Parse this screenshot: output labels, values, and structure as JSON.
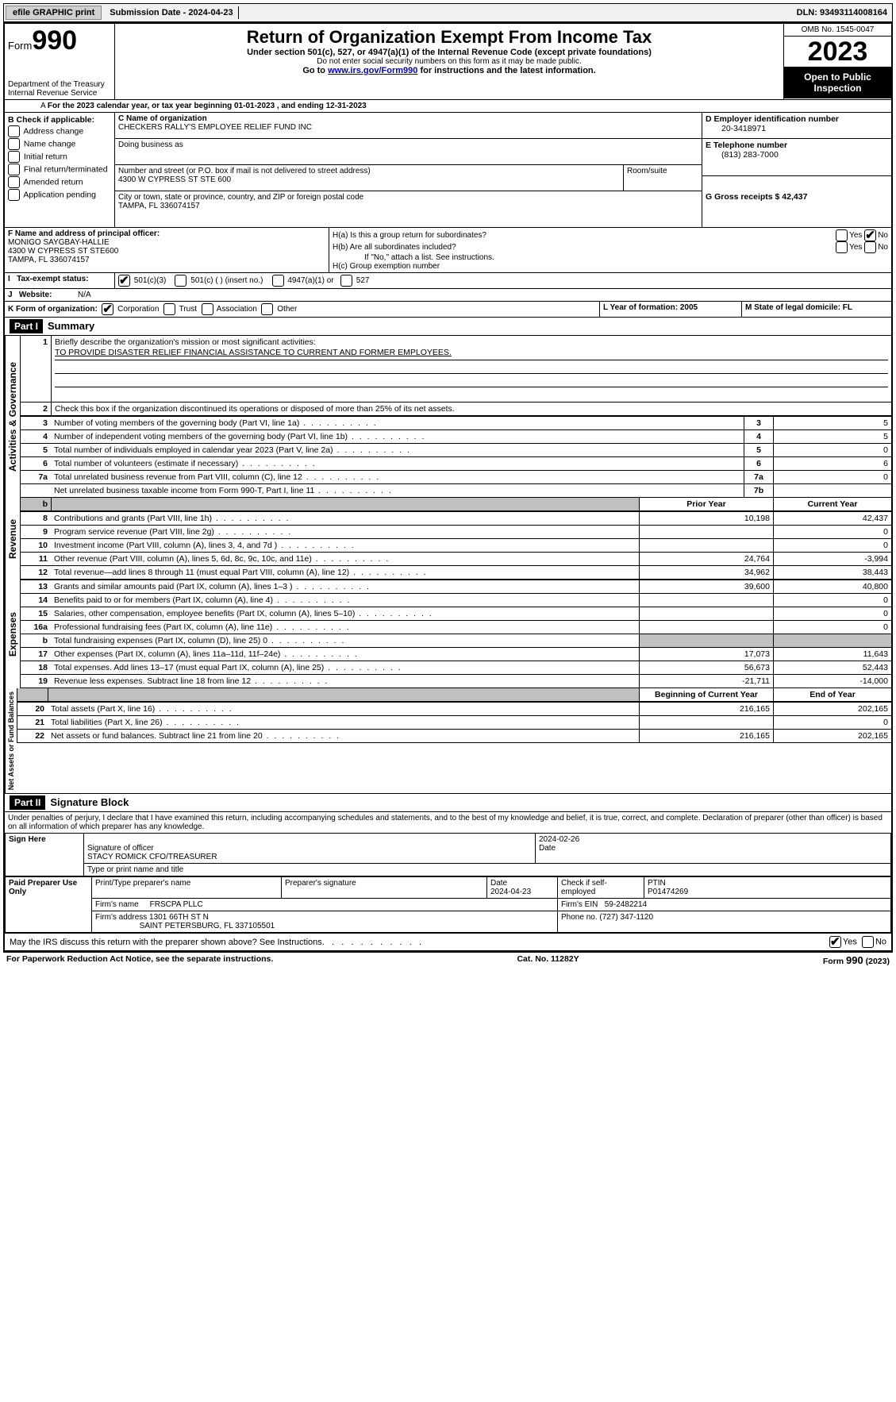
{
  "topbar": {
    "efile": "efile GRAPHIC print",
    "submission": "Submission Date - 2024-04-23",
    "dln": "DLN: 93493114008164"
  },
  "header": {
    "form_label": "Form",
    "form_no": "990",
    "dept": "Department of the Treasury Internal Revenue Service",
    "title": "Return of Organization Exempt From Income Tax",
    "line1": "Under section 501(c), 527, or 4947(a)(1) of the Internal Revenue Code (except private foundations)",
    "line2": "Do not enter social security numbers on this form as it may be made public.",
    "line3_pre": "Go to ",
    "line3_link": "www.irs.gov/Form990",
    "line3_post": " for instructions and the latest information.",
    "omb": "OMB No. 1545-0047",
    "year": "2023",
    "open": "Open to Public Inspection"
  },
  "sectionA": {
    "text": "For the 2023 calendar year, or tax year beginning 01-01-2023   , and ending 12-31-2023"
  },
  "boxB": {
    "label": "B Check if applicable:",
    "opts": [
      "Address change",
      "Name change",
      "Initial return",
      "Final return/terminated",
      "Amended return",
      "Application pending"
    ]
  },
  "boxC": {
    "name_label": "C Name of organization",
    "name": "CHECKERS RALLY'S EMPLOYEE RELIEF FUND INC",
    "dba_label": "Doing business as",
    "street_label": "Number and street (or P.O. box if mail is not delivered to street address)",
    "street": "4300 W CYPRESS ST STE 600",
    "room_label": "Room/suite",
    "city_label": "City or town, state or province, country, and ZIP or foreign postal code",
    "city": "TAMPA, FL  336074157"
  },
  "boxD": {
    "label": "D Employer identification number",
    "val": "20-3418971"
  },
  "boxE": {
    "label": "E Telephone number",
    "val": "(813) 283-7000"
  },
  "boxG": {
    "label": "G Gross receipts $ 42,437"
  },
  "boxF": {
    "label": "F  Name and address of principal officer:",
    "name": "MONIGO SAYGBAY-HALLIE",
    "addr1": "4300 W CYPRESS ST STE600",
    "addr2": "TAMPA, FL  336074157"
  },
  "boxH": {
    "a": "H(a)  Is this a group return for subordinates?",
    "b": "H(b)  Are all subordinates included?",
    "note": "If \"No,\" attach a list. See instructions.",
    "c": "H(c)  Group exemption number"
  },
  "taxExempt": {
    "label": "Tax-exempt status:",
    "o1": "501(c)(3)",
    "o2": "501(c) (  ) (insert no.)",
    "o3": "4947(a)(1) or",
    "o4": "527"
  },
  "website": {
    "label": "Website:",
    "val": "N/A"
  },
  "formOrg": {
    "label": "K Form of organization:",
    "o1": "Corporation",
    "o2": "Trust",
    "o3": "Association",
    "o4": "Other"
  },
  "yearFormation": "L Year of formation: 2005",
  "domicile": "M State of legal domicile: FL",
  "part1_label": "Part I",
  "part1_title": "Summary",
  "mission_label": "Briefly describe the organization's mission or most significant activities:",
  "mission_text": "TO PROVIDE DISASTER RELIEF FINANCIAL ASSISTANCE TO CURRENT AND FORMER EMPLOYEES.",
  "line2_text": "Check this box      if the organization discontinued its operations or disposed of more than 25% of its net assets.",
  "lines_gov": [
    {
      "n": "3",
      "desc": "Number of voting members of the governing body (Part VI, line 1a)",
      "box": "3",
      "val": "5"
    },
    {
      "n": "4",
      "desc": "Number of independent voting members of the governing body (Part VI, line 1b)",
      "box": "4",
      "val": "5"
    },
    {
      "n": "5",
      "desc": "Total number of individuals employed in calendar year 2023 (Part V, line 2a)",
      "box": "5",
      "val": "0"
    },
    {
      "n": "6",
      "desc": "Total number of volunteers (estimate if necessary)",
      "box": "6",
      "val": "6"
    },
    {
      "n": "7a",
      "desc": "Total unrelated business revenue from Part VIII, column (C), line 12",
      "box": "7a",
      "val": "0"
    },
    {
      "n": "",
      "desc": "Net unrelated business taxable income from Form 990-T, Part I, line 11",
      "box": "7b",
      "val": ""
    }
  ],
  "col_prior": "Prior Year",
  "col_current": "Current Year",
  "col_begin": "Beginning of Current Year",
  "col_end": "End of Year",
  "lines_rev": [
    {
      "n": "8",
      "desc": "Contributions and grants (Part VIII, line 1h)",
      "p": "10,198",
      "c": "42,437"
    },
    {
      "n": "9",
      "desc": "Program service revenue (Part VIII, line 2g)",
      "p": "",
      "c": "0"
    },
    {
      "n": "10",
      "desc": "Investment income (Part VIII, column (A), lines 3, 4, and 7d )",
      "p": "",
      "c": "0"
    },
    {
      "n": "11",
      "desc": "Other revenue (Part VIII, column (A), lines 5, 6d, 8c, 9c, 10c, and 11e)",
      "p": "24,764",
      "c": "-3,994"
    },
    {
      "n": "12",
      "desc": "Total revenue—add lines 8 through 11 (must equal Part VIII, column (A), line 12)",
      "p": "34,962",
      "c": "38,443"
    }
  ],
  "lines_exp": [
    {
      "n": "13",
      "desc": "Grants and similar amounts paid (Part IX, column (A), lines 1–3 )",
      "p": "39,600",
      "c": "40,800"
    },
    {
      "n": "14",
      "desc": "Benefits paid to or for members (Part IX, column (A), line 4)",
      "p": "",
      "c": "0"
    },
    {
      "n": "15",
      "desc": "Salaries, other compensation, employee benefits (Part IX, column (A), lines 5–10)",
      "p": "",
      "c": "0"
    },
    {
      "n": "16a",
      "desc": "Professional fundraising fees (Part IX, column (A), line 11e)",
      "p": "",
      "c": "0"
    },
    {
      "n": "b",
      "desc": "Total fundraising expenses (Part IX, column (D), line 25) 0",
      "p": "GREY",
      "c": "GREY"
    },
    {
      "n": "17",
      "desc": "Other expenses (Part IX, column (A), lines 11a–11d, 11f–24e)",
      "p": "17,073",
      "c": "11,643"
    },
    {
      "n": "18",
      "desc": "Total expenses. Add lines 13–17 (must equal Part IX, column (A), line 25)",
      "p": "56,673",
      "c": "52,443"
    },
    {
      "n": "19",
      "desc": "Revenue less expenses. Subtract line 18 from line 12",
      "p": "-21,711",
      "c": "-14,000"
    }
  ],
  "lines_net": [
    {
      "n": "20",
      "desc": "Total assets (Part X, line 16)",
      "p": "216,165",
      "c": "202,165"
    },
    {
      "n": "21",
      "desc": "Total liabilities (Part X, line 26)",
      "p": "",
      "c": "0"
    },
    {
      "n": "22",
      "desc": "Net assets or fund balances. Subtract line 21 from line 20",
      "p": "216,165",
      "c": "202,165"
    }
  ],
  "vlabels": {
    "gov": "Activities & Governance",
    "rev": "Revenue",
    "exp": "Expenses",
    "net": "Net Assets or Fund Balances"
  },
  "part2_label": "Part II",
  "part2_title": "Signature Block",
  "penalty": "Under penalties of perjury, I declare that I have examined this return, including accompanying schedules and statements, and to the best of my knowledge and belief, it is true, correct, and complete. Declaration of preparer (other than officer) is based on all information of which preparer has any knowledge.",
  "sign": {
    "here": "Sign Here",
    "sig_label": "Signature of officer",
    "officer": "STACY ROMICK  CFO/TREASURER",
    "type_label": "Type or print name and title",
    "date_label": "Date",
    "date": "2024-02-26"
  },
  "paid": {
    "label": "Paid Preparer Use Only",
    "c1": "Print/Type preparer's name",
    "c2": "Preparer's signature",
    "c3": "Date",
    "date": "2024-04-23",
    "c4": "Check      if self-employed",
    "c5": "PTIN",
    "ptin": "P01474269",
    "firm_label": "Firm's name",
    "firm": "FRSCPA PLLC",
    "ein_label": "Firm's EIN",
    "ein": "59-2482214",
    "addr_label": "Firm's address",
    "addr1": "1301 66TH ST N",
    "addr2": "SAINT PETERSBURG, FL  337105501",
    "phone_label": "Phone no.",
    "phone": "(727) 347-1120"
  },
  "discuss": "May the IRS discuss this return with the preparer shown above? See Instructions.",
  "footer": {
    "left": "For Paperwork Reduction Act Notice, see the separate instructions.",
    "mid": "Cat. No. 11282Y",
    "right_pre": "Form ",
    "right_form": "990",
    "right_post": " (2023)"
  }
}
